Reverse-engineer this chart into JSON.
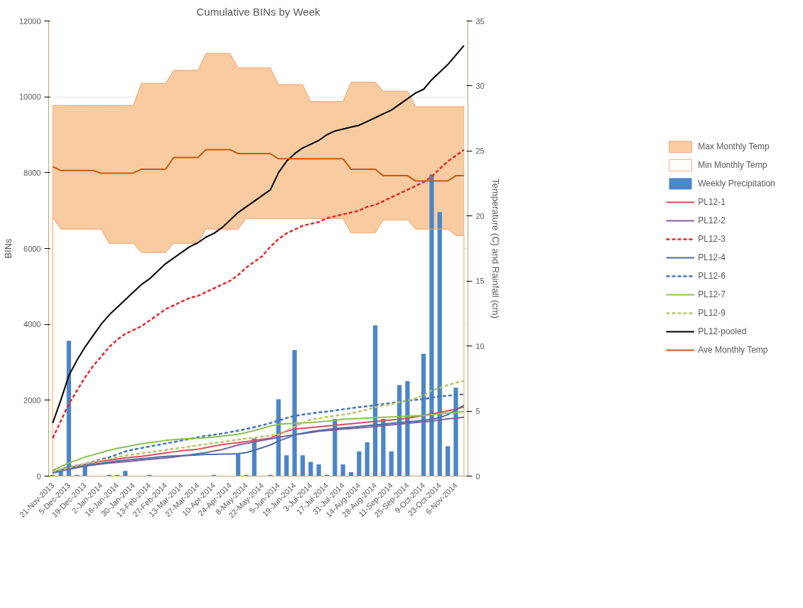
{
  "chart_data": {
    "type": "line",
    "title": "Cumulative BINs by Week",
    "ylabel": "BINs",
    "y2label": "Temperature (C) and Rainfall (cm)",
    "categories": [
      "21-Nov-2013",
      null,
      "5-Dec-2013",
      null,
      "19-Dec-2013",
      null,
      "2-Jan-2014",
      null,
      "16-Jan-2014",
      null,
      "30-Jan-2014",
      null,
      "13-Feb-2014",
      null,
      "27-Feb-2014",
      null,
      "13-Mar-2014",
      null,
      "27-Mar-2014",
      null,
      "10-Apr-2014",
      null,
      "24-Apr-2014",
      null,
      "8-May-2014",
      null,
      "22-May-2014",
      null,
      "5-Jun-2014",
      null,
      "19-Jun-2014",
      null,
      "3-Jul-2014",
      null,
      "17-Jul-2014",
      null,
      "31-Jul-2014",
      null,
      "14-Aug-2014",
      null,
      "28-Aug-2014",
      null,
      "11-Sep-2014",
      null,
      "25-Sep-2014",
      null,
      "9-Oct-2014",
      null,
      "23-Oct-2014",
      null,
      "6-Nov-2014",
      null
    ],
    "ylim": [
      0,
      12000
    ],
    "yticks": [
      0,
      2000,
      4000,
      6000,
      8000,
      10000,
      12000
    ],
    "y2lim": [
      0,
      35
    ],
    "y2ticks": [
      0,
      5,
      10,
      15,
      20,
      25,
      30,
      35
    ],
    "grid": "y",
    "legend": "right",
    "marker": "none",
    "series": [
      {
        "name": "Max Monthly Temp",
        "type": "area",
        "axis": "y2",
        "color": "#f8cba0",
        "values": [
          28.5,
          28.5,
          28.5,
          28.5,
          28.5,
          28.5,
          28.5,
          28.5,
          28.5,
          28.5,
          28.5,
          30.2,
          30.2,
          30.2,
          30.2,
          31.2,
          31.2,
          31.2,
          31.2,
          32.5,
          32.5,
          32.5,
          32.5,
          31.4,
          31.4,
          31.4,
          31.4,
          31.4,
          30.1,
          30.1,
          30.1,
          30.1,
          28.8,
          28.8,
          28.8,
          28.8,
          28.8,
          30.3,
          30.3,
          30.3,
          30.3,
          29.6,
          29.6,
          29.6,
          29.6,
          28.4,
          28.4,
          28.4,
          28.4,
          28.4,
          28.4,
          28.4
        ]
      },
      {
        "name": "Min Monthly Temp",
        "type": "area",
        "axis": "y2",
        "color": "#ffffff",
        "values": [
          19.9,
          19.0,
          19.0,
          19.0,
          19.0,
          19.0,
          19.0,
          17.9,
          17.9,
          17.9,
          17.9,
          17.2,
          17.2,
          17.2,
          17.2,
          17.9,
          17.9,
          17.9,
          17.9,
          19.0,
          19.0,
          19.0,
          19.0,
          19.0,
          19.8,
          19.8,
          19.8,
          19.8,
          19.8,
          19.8,
          19.8,
          19.8,
          19.8,
          19.8,
          19.8,
          19.8,
          19.8,
          18.7,
          18.7,
          18.7,
          18.7,
          19.7,
          19.7,
          19.7,
          19.7,
          19.0,
          19.0,
          19.0,
          19.0,
          19.0,
          18.5,
          18.5
        ]
      },
      {
        "name": "Weekly Precipitation",
        "type": "bar",
        "axis": "y2",
        "color": "#4a86c8",
        "values": [
          0.1,
          0.5,
          10.4,
          0.1,
          0.8,
          0,
          0,
          0.1,
          0.1,
          0.4,
          0,
          0,
          0.1,
          0,
          0,
          0,
          0,
          0,
          0,
          0,
          0.1,
          0,
          0,
          1.7,
          0.1,
          2.9,
          0,
          0.1,
          5.9,
          1.6,
          9.7,
          1.6,
          1.1,
          0.9,
          0.1,
          4.4,
          0.9,
          0.3,
          1.9,
          2.6,
          11.6,
          4.4,
          1.9,
          7.0,
          7.3,
          0,
          9.4,
          23.2,
          20.3,
          2.3,
          6.8,
          0
        ]
      },
      {
        "name": "PL12-1",
        "color": "#e04a5e",
        "values": [
          100,
          160,
          220,
          270,
          310,
          350,
          390,
          420,
          450,
          480,
          500,
          520,
          550,
          580,
          610,
          640,
          670,
          690,
          710,
          750,
          790,
          830,
          860,
          880,
          910,
          940,
          970,
          1000,
          1100,
          1180,
          1240,
          1260,
          1280,
          1300,
          1320,
          1340,
          1360,
          1380,
          1400,
          1420,
          1440,
          1460,
          1480,
          1500,
          1530,
          1560,
          1600,
          1640,
          1680,
          1720,
          1770,
          1820
        ]
      },
      {
        "name": "PL12-2",
        "color": "#7f5fa0",
        "values": [
          80,
          130,
          180,
          220,
          260,
          290,
          320,
          340,
          360,
          380,
          400,
          420,
          440,
          460,
          480,
          500,
          530,
          560,
          590,
          620,
          660,
          700,
          760,
          820,
          860,
          900,
          940,
          980,
          1020,
          1060,
          1090,
          1120,
          1150,
          1180,
          1200,
          1220,
          1240,
          1250,
          1270,
          1290,
          1310,
          1330,
          1350,
          1370,
          1390,
          1410,
          1430,
          1450,
          1480,
          1510,
          1530,
          1550
        ]
      },
      {
        "name": "PL12-3",
        "color": "#e8262a",
        "line_style": "dashed",
        "values": [
          1000,
          1450,
          1900,
          2250,
          2600,
          2900,
          3150,
          3400,
          3600,
          3750,
          3850,
          3950,
          4100,
          4250,
          4400,
          4500,
          4600,
          4700,
          4750,
          4850,
          4950,
          5050,
          5150,
          5300,
          5500,
          5650,
          5800,
          6050,
          6250,
          6400,
          6500,
          6600,
          6650,
          6700,
          6800,
          6850,
          6900,
          6950,
          7000,
          7100,
          7150,
          7250,
          7350,
          7450,
          7550,
          7650,
          7750,
          7900,
          8100,
          8300,
          8450,
          8600
        ]
      },
      {
        "name": "PL12-4",
        "color": "#4a6fa0",
        "values": [
          100,
          150,
          200,
          240,
          280,
          310,
          340,
          370,
          400,
          420,
          440,
          460,
          480,
          500,
          520,
          530,
          540,
          550,
          560,
          570,
          570,
          580,
          580,
          590,
          620,
          680,
          750,
          820,
          920,
          1000,
          1090,
          1130,
          1170,
          1200,
          1230,
          1250,
          1270,
          1290,
          1310,
          1330,
          1350,
          1370,
          1390,
          1410,
          1430,
          1450,
          1470,
          1500,
          1540,
          1620,
          1740,
          1870
        ]
      },
      {
        "name": "PL12-6",
        "color": "#4472c4",
        "line_style": "dashed",
        "values": [
          120,
          180,
          240,
          280,
          320,
          380,
          440,
          500,
          570,
          650,
          700,
          740,
          780,
          820,
          860,
          900,
          940,
          980,
          1020,
          1060,
          1090,
          1120,
          1160,
          1200,
          1240,
          1290,
          1340,
          1400,
          1460,
          1530,
          1590,
          1620,
          1650,
          1680,
          1700,
          1730,
          1760,
          1790,
          1820,
          1840,
          1870,
          1900,
          1930,
          1960,
          1990,
          2010,
          2030,
          2070,
          2100,
          2120,
          2140,
          2160
        ]
      },
      {
        "name": "PL12-7",
        "color": "#8cc152",
        "values": [
          150,
          250,
          350,
          420,
          500,
          560,
          620,
          680,
          730,
          770,
          810,
          850,
          880,
          910,
          940,
          960,
          980,
          990,
          1000,
          1010,
          1030,
          1050,
          1080,
          1100,
          1150,
          1200,
          1260,
          1320,
          1370,
          1380,
          1390,
          1400,
          1410,
          1430,
          1450,
          1470,
          1500,
          1510,
          1520,
          1530,
          1540,
          1550,
          1560,
          1570,
          1580,
          1590,
          1600,
          1620,
          1640,
          1660,
          1680,
          1700
        ]
      },
      {
        "name": "PL12-9",
        "color": "#b8c46a",
        "line_style": "dashed",
        "values": [
          120,
          170,
          220,
          270,
          320,
          370,
          420,
          460,
          500,
          540,
          570,
          600,
          630,
          660,
          690,
          720,
          750,
          780,
          810,
          840,
          870,
          900,
          930,
          960,
          990,
          1010,
          1040,
          1070,
          1090,
          1200,
          1300,
          1400,
          1490,
          1520,
          1560,
          1590,
          1620,
          1650,
          1700,
          1750,
          1820,
          1860,
          1900,
          1950,
          1990,
          2050,
          2120,
          2260,
          2330,
          2400,
          2460,
          2510
        ]
      },
      {
        "name": "PL12-pooled",
        "color": "#000000",
        "values": [
          1400,
          2000,
          2650,
          3050,
          3400,
          3700,
          4000,
          4250,
          4450,
          4650,
          4850,
          5050,
          5200,
          5400,
          5600,
          5750,
          5900,
          6050,
          6150,
          6300,
          6400,
          6550,
          6750,
          6950,
          7100,
          7250,
          7400,
          7550,
          8000,
          8300,
          8500,
          8650,
          8750,
          8850,
          9000,
          9100,
          9150,
          9200,
          9250,
          9350,
          9450,
          9550,
          9650,
          9800,
          9950,
          10100,
          10200,
          10450,
          10650,
          10850,
          11100,
          11350
        ]
      },
      {
        "name": "Ave Monthly Temp",
        "axis": "y2",
        "color": "#c55a11",
        "values": [
          23.8,
          23.5,
          23.5,
          23.5,
          23.5,
          23.5,
          23.3,
          23.3,
          23.3,
          23.3,
          23.3,
          23.6,
          23.6,
          23.6,
          23.6,
          24.5,
          24.5,
          24.5,
          24.5,
          25.1,
          25.1,
          25.1,
          25.1,
          24.8,
          24.8,
          24.8,
          24.8,
          24.8,
          24.4,
          24.4,
          24.4,
          24.4,
          24.4,
          24.4,
          24.4,
          24.4,
          24.4,
          23.6,
          23.6,
          23.6,
          23.6,
          23.1,
          23.1,
          23.1,
          23.1,
          22.7,
          22.7,
          22.7,
          22.7,
          22.7,
          23.1,
          23.1
        ]
      }
    ]
  }
}
